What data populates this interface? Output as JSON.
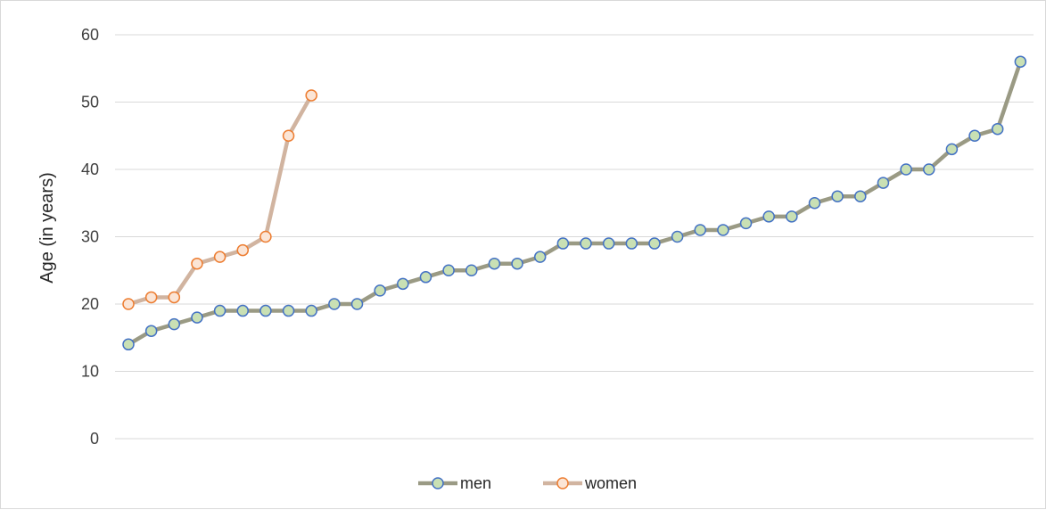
{
  "chart_data": {
    "type": "line",
    "title": "",
    "xlabel": "",
    "ylabel": "Age (in years)",
    "ylim": [
      0,
      60
    ],
    "yticks": [
      0,
      10,
      20,
      30,
      40,
      50,
      60
    ],
    "grid": true,
    "legend_position": "bottom",
    "series": [
      {
        "name": "men",
        "line_color": "#9a9a84",
        "marker_fill": "#c9e0b4",
        "marker_edge": "#4472c4",
        "values": [
          14,
          16,
          17,
          18,
          19,
          19,
          19,
          19,
          19,
          20,
          20,
          22,
          23,
          24,
          25,
          25,
          26,
          26,
          27,
          29,
          29,
          29,
          29,
          29,
          30,
          31,
          31,
          32,
          33,
          33,
          35,
          36,
          36,
          38,
          40,
          40,
          43,
          45,
          46,
          56
        ]
      },
      {
        "name": "women",
        "line_color": "#d1b4a0",
        "marker_fill": "#fbe5d6",
        "marker_edge": "#ed7d31",
        "values": [
          20,
          21,
          21,
          26,
          27,
          28,
          30,
          45,
          51
        ]
      }
    ]
  }
}
